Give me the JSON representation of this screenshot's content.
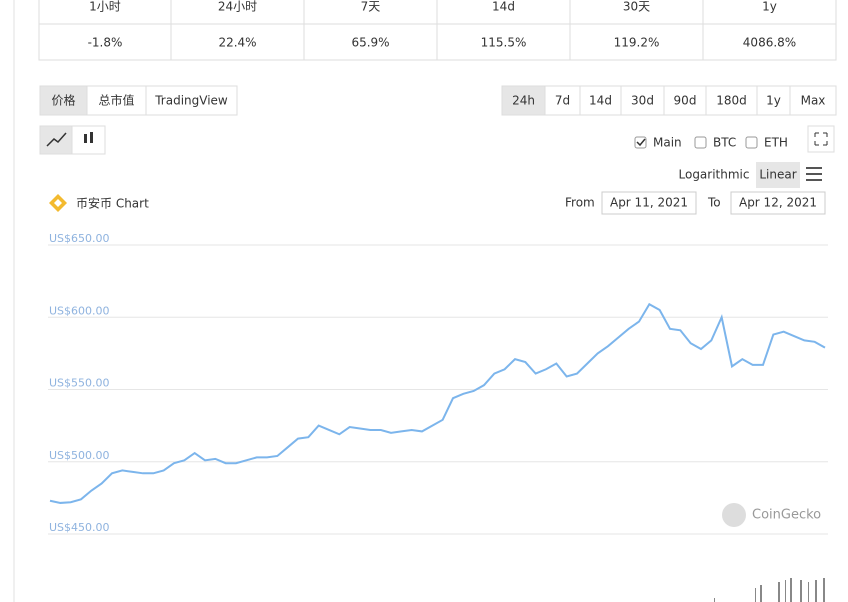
{
  "performance": {
    "headers": [
      "1小时",
      "24小时",
      "7天",
      "14d",
      "30天",
      "1y"
    ],
    "values": [
      "-1.8%",
      "22.4%",
      "65.9%",
      "115.5%",
      "119.2%",
      "4086.8%"
    ]
  },
  "tabs": {
    "items": [
      "价格",
      "总市值",
      "TradingView"
    ],
    "active": 0
  },
  "ranges": {
    "items": [
      "24h",
      "7d",
      "14d",
      "30d",
      "90d",
      "180d",
      "1y",
      "Max"
    ],
    "active": 0
  },
  "toggles": [
    {
      "label": "Main",
      "checked": true
    },
    {
      "label": "BTC",
      "checked": false
    },
    {
      "label": "ETH",
      "checked": false
    }
  ],
  "scales": {
    "items": [
      "Logarithmic",
      "Linear"
    ],
    "active": 1
  },
  "date_range": {
    "from_label": "From",
    "from": "Apr 11, 2021",
    "to_label": "To",
    "to": "Apr 12, 2021"
  },
  "watermark": "CoinGecko",
  "chart_data": {
    "type": "line",
    "title": "币安币 Chart",
    "color": "#7cb5ec",
    "grid": true,
    "log_scale": false,
    "ylim": [
      450,
      650
    ],
    "yticks": [
      {
        "value": 450,
        "label": "US$450.00"
      },
      {
        "value": 500,
        "label": "US$500.00"
      },
      {
        "value": 550,
        "label": "US$550.00"
      },
      {
        "value": 600,
        "label": "US$600.00"
      },
      {
        "value": 650,
        "label": "US$650.00"
      }
    ],
    "values": [
      473,
      471.5,
      472,
      474,
      480,
      485,
      492,
      494,
      493,
      492,
      492,
      494,
      499,
      501,
      506,
      501,
      502,
      499,
      499,
      501,
      503,
      503,
      504,
      510,
      516,
      517,
      525,
      522,
      519,
      524,
      523,
      522,
      522,
      520,
      521,
      522,
      521,
      525,
      529,
      544,
      547,
      549,
      553,
      561,
      564,
      571,
      569,
      561,
      564,
      568,
      559,
      561,
      568,
      575,
      580,
      586,
      592,
      597,
      609,
      605,
      592,
      591,
      582,
      578,
      584,
      600,
      566,
      571,
      567,
      567,
      588,
      590,
      587,
      584,
      583,
      579
    ]
  }
}
